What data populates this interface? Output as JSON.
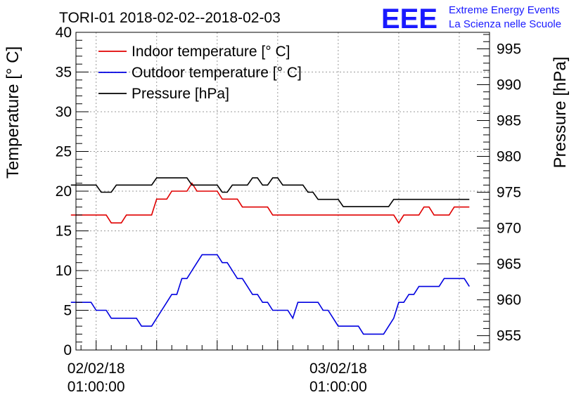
{
  "chart_data": {
    "type": "line",
    "title": "TORI-01 2018-02-02--2018-02-03",
    "logo": {
      "mark": "EEE",
      "line1": "Extreme Energy Events",
      "line2": "La Scienza nelle Scuole",
      "color": "#1a1aff"
    },
    "xlabel": "",
    "ylabel_left": "Temperature [° C]",
    "ylabel_right": "Pressure [hPa]",
    "ylim_left": [
      0,
      40
    ],
    "ylim_right": [
      953,
      997.3
    ],
    "yticks_left": [
      "0",
      "5",
      "10",
      "15",
      "20",
      "25",
      "30",
      "35",
      "40"
    ],
    "yticks_right": [
      "955",
      "960",
      "965",
      "970",
      "975",
      "980",
      "985",
      "990",
      "995"
    ],
    "x_unit": "hours since 2018-02-02 00:00:00",
    "xlim": [
      -1.0,
      40.0
    ],
    "grid": true,
    "x_gridlines": [
      1,
      7,
      13,
      19,
      25,
      31,
      37
    ],
    "x_tick_labels": [
      {
        "x": 1,
        "date": "02/02/18",
        "time": "01:00:00"
      },
      {
        "x": 25,
        "date": "03/02/18",
        "time": "01:00:00"
      }
    ],
    "legend": {
      "position": "top-left",
      "entries": [
        "Indoor temperature [° C]",
        "Outdoor temperature [° C]",
        "Pressure [hPa]"
      ]
    },
    "series": [
      {
        "name": "Indoor temperature [° C]",
        "axis": "left",
        "color": "#e00000",
        "x": [
          -1.5,
          0,
          0.5,
          1,
          1.5,
          2,
          2.5,
          3,
          3.5,
          4,
          4.5,
          5,
          5.5,
          6,
          6.5,
          7,
          7.5,
          8,
          8.5,
          9,
          9.5,
          10,
          10.5,
          11,
          11.5,
          12,
          12.5,
          13,
          13.5,
          14,
          14.5,
          15,
          15.5,
          16,
          16.5,
          17,
          17.5,
          18,
          18.5,
          19,
          19.5,
          20,
          20.5,
          21,
          21.5,
          22,
          22.5,
          23,
          23.5,
          24,
          24.5,
          25,
          25.5,
          26,
          26.5,
          27,
          27.5,
          28,
          28.5,
          29,
          29.5,
          30,
          30.5,
          31,
          31.5,
          32,
          32.5,
          33,
          33.5,
          34,
          34.5,
          35,
          35.5,
          36,
          36.5,
          37,
          37.5,
          38
        ],
        "values": [
          17,
          17,
          17,
          17,
          17,
          17,
          16,
          16,
          16,
          17,
          17,
          17,
          17,
          17,
          17,
          19,
          19,
          19,
          20,
          20,
          20,
          20,
          21,
          20,
          20,
          20,
          20,
          20,
          19,
          19,
          19,
          19,
          18,
          18,
          18,
          18,
          18,
          18,
          17,
          17,
          17,
          17,
          17,
          17,
          17,
          17,
          17,
          17,
          17,
          17,
          17,
          17,
          17,
          17,
          17,
          17,
          17,
          17,
          17,
          17,
          17,
          17,
          17,
          16,
          17,
          17,
          17,
          17,
          18,
          18,
          17,
          17,
          17,
          17,
          18,
          18,
          18,
          18
        ]
      },
      {
        "name": "Outdoor temperature [° C]",
        "axis": "left",
        "color": "#0000e0",
        "x": [
          -1.5,
          0,
          0.5,
          1,
          1.5,
          2,
          2.5,
          3,
          3.5,
          4,
          4.5,
          5,
          5.5,
          6,
          6.5,
          7,
          7.5,
          8,
          8.5,
          9,
          9.5,
          10,
          10.5,
          11,
          11.5,
          12,
          12.5,
          13,
          13.5,
          14,
          14.5,
          15,
          15.5,
          16,
          16.5,
          17,
          17.5,
          18,
          18.5,
          19,
          19.5,
          20,
          20.5,
          21,
          21.5,
          22,
          22.5,
          23,
          23.5,
          24,
          24.5,
          25,
          25.5,
          26,
          26.5,
          27,
          27.5,
          28,
          28.5,
          29,
          29.5,
          30,
          30.5,
          31,
          31.5,
          32,
          32.5,
          33,
          33.5,
          34,
          34.5,
          35,
          35.5,
          36,
          36.5,
          37,
          37.5,
          38
        ],
        "values": [
          6,
          6,
          6,
          5,
          5,
          5,
          4,
          4,
          4,
          4,
          4,
          4,
          3,
          3,
          3,
          4,
          5,
          6,
          7,
          7,
          9,
          9,
          10,
          11,
          12,
          12,
          12,
          12,
          11,
          11,
          10,
          9,
          9,
          8,
          7,
          7,
          6,
          6,
          5,
          5,
          5,
          5,
          4,
          6,
          6,
          6,
          6,
          6,
          5,
          5,
          4,
          3,
          3,
          3,
          3,
          3,
          2,
          2,
          2,
          2,
          2,
          3,
          4,
          6,
          6,
          7,
          7,
          8,
          8,
          8,
          8,
          8,
          9,
          9,
          9,
          9,
          9,
          8
        ]
      },
      {
        "name": "Pressure [hPa]",
        "axis": "right",
        "color": "#000000",
        "x": [
          -1.5,
          0,
          0.5,
          1,
          1.5,
          2,
          2.5,
          3,
          3.5,
          4,
          4.5,
          5,
          5.5,
          6,
          6.5,
          7,
          7.5,
          8,
          8.5,
          9,
          9.5,
          10,
          10.5,
          11,
          11.5,
          12,
          12.5,
          13,
          13.5,
          14,
          14.5,
          15,
          15.5,
          16,
          16.5,
          17,
          17.5,
          18,
          18.5,
          19,
          19.5,
          20,
          20.5,
          21,
          21.5,
          22,
          22.5,
          23,
          23.5,
          24,
          24.5,
          25,
          25.5,
          26,
          26.5,
          27,
          27.5,
          28,
          28.5,
          29,
          29.5,
          30,
          30.5,
          31,
          31.5,
          32,
          32.5,
          33,
          33.5,
          34,
          34.5,
          35,
          35.5,
          36,
          36.5,
          37,
          37.5,
          38
        ],
        "values": [
          976,
          976,
          976,
          976,
          975,
          975,
          975,
          976,
          976,
          976,
          976,
          976,
          976,
          976,
          976,
          977,
          977,
          977,
          977,
          977,
          977,
          977,
          976,
          976,
          976,
          976,
          976,
          976,
          975,
          975,
          976,
          976,
          976,
          976,
          977,
          977,
          976,
          976,
          977,
          977,
          976,
          976,
          976,
          976,
          976,
          975,
          975,
          974,
          974,
          974,
          974,
          974,
          973,
          973,
          973,
          973,
          973,
          973,
          973,
          973,
          973,
          973,
          974,
          974,
          974,
          974,
          974,
          974,
          974,
          974,
          974,
          974,
          974,
          974,
          974,
          974,
          974,
          974
        ]
      }
    ]
  }
}
